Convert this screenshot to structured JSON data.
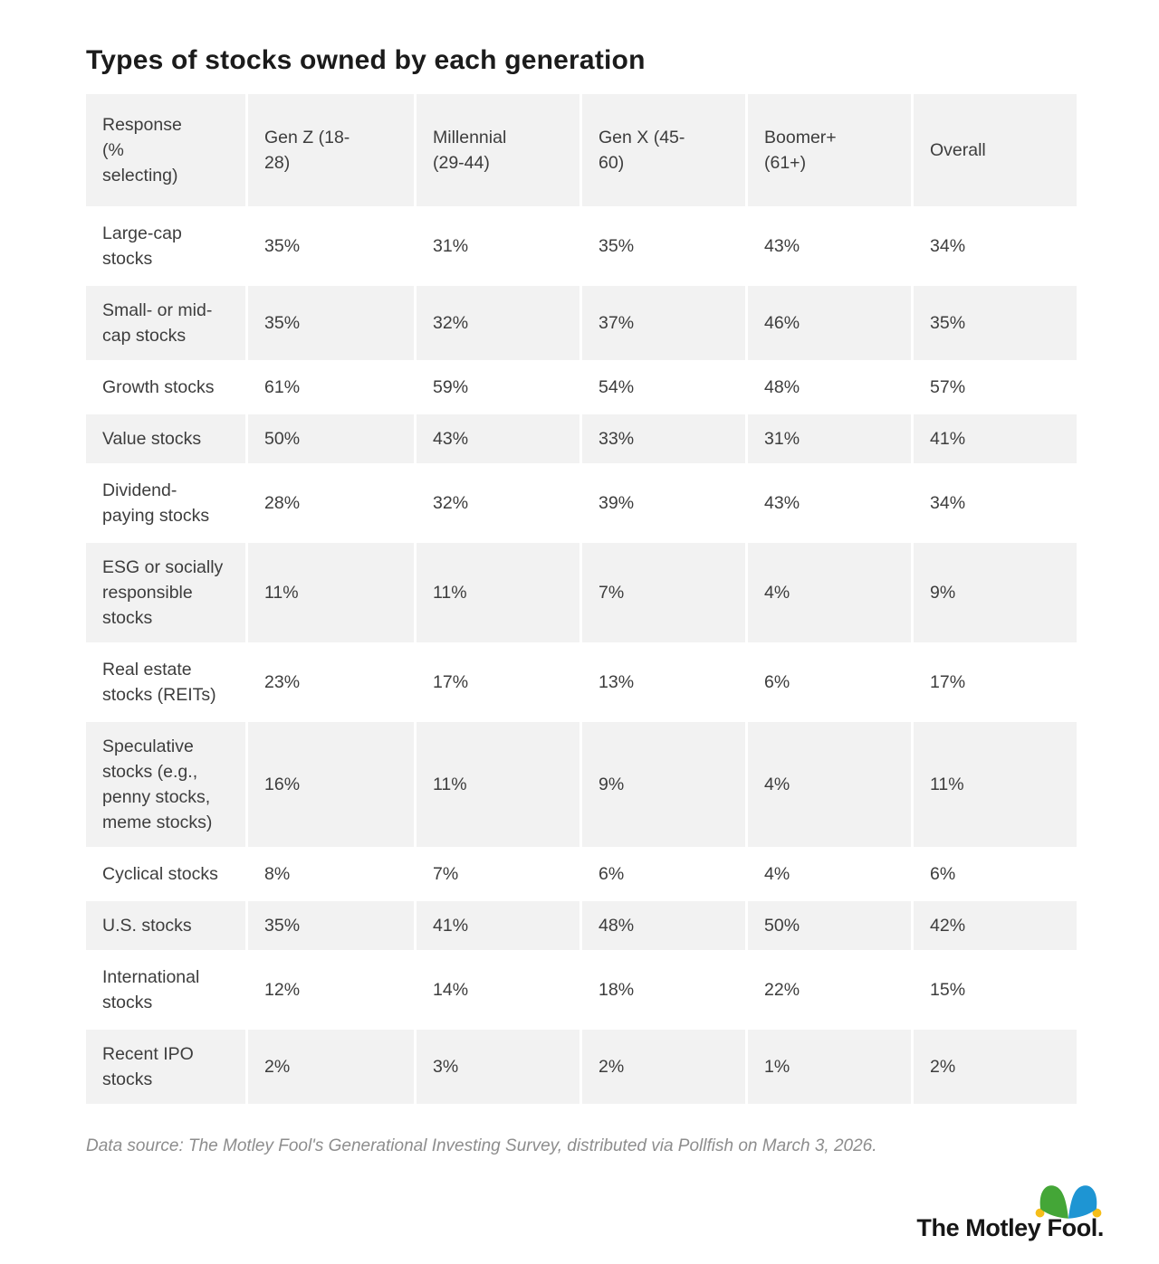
{
  "chart_data": {
    "type": "table",
    "title": "Types of stocks owned by each generation",
    "columns": [
      "Response\n(%\nselecting)",
      "Gen Z (18-\n28)",
      "Millennial\n(29-44)",
      "Gen X (45-\n60)",
      "Boomer+\n(61+)",
      "Overall"
    ],
    "rows": [
      {
        "label": "Large-cap\nstocks",
        "values": [
          "35%",
          "31%",
          "35%",
          "43%",
          "34%"
        ]
      },
      {
        "label": "Small- or mid-\ncap stocks",
        "values": [
          "35%",
          "32%",
          "37%",
          "46%",
          "35%"
        ]
      },
      {
        "label": "Growth stocks",
        "values": [
          "61%",
          "59%",
          "54%",
          "48%",
          "57%"
        ]
      },
      {
        "label": "Value stocks",
        "values": [
          "50%",
          "43%",
          "33%",
          "31%",
          "41%"
        ]
      },
      {
        "label": "Dividend-\npaying stocks",
        "values": [
          "28%",
          "32%",
          "39%",
          "43%",
          "34%"
        ]
      },
      {
        "label": "ESG or socially\nresponsible\nstocks",
        "values": [
          "11%",
          "11%",
          "7%",
          "4%",
          "9%"
        ]
      },
      {
        "label": "Real estate\nstocks (REITs)",
        "values": [
          "23%",
          "17%",
          "13%",
          "6%",
          "17%"
        ]
      },
      {
        "label": "Speculative\nstocks (e.g.,\npenny stocks,\nmeme stocks)",
        "values": [
          "16%",
          "11%",
          "9%",
          "4%",
          "11%"
        ]
      },
      {
        "label": "Cyclical stocks",
        "values": [
          "8%",
          "7%",
          "6%",
          "4%",
          "6%"
        ]
      },
      {
        "label": "U.S. stocks",
        "values": [
          "35%",
          "41%",
          "48%",
          "50%",
          "42%"
        ]
      },
      {
        "label": "International\nstocks",
        "values": [
          "12%",
          "14%",
          "18%",
          "22%",
          "15%"
        ]
      },
      {
        "label": "Recent IPO\nstocks",
        "values": [
          "2%",
          "3%",
          "2%",
          "1%",
          "2%"
        ]
      }
    ],
    "caption": "Data source: The Motley Fool's Generational Investing Survey, distributed via Pollfish on March 3, 2026."
  },
  "logo": {
    "text": "The Motley Fool.",
    "hat_green": "#44A637",
    "hat_blue": "#1E95D3",
    "hat_gold": "#F5BE19"
  },
  "colors": {
    "row_stripe": "#F2F2F2",
    "body_text": "#3D3D3D",
    "title_text": "#1B1B1B",
    "caption_text": "#8D8D8D"
  }
}
